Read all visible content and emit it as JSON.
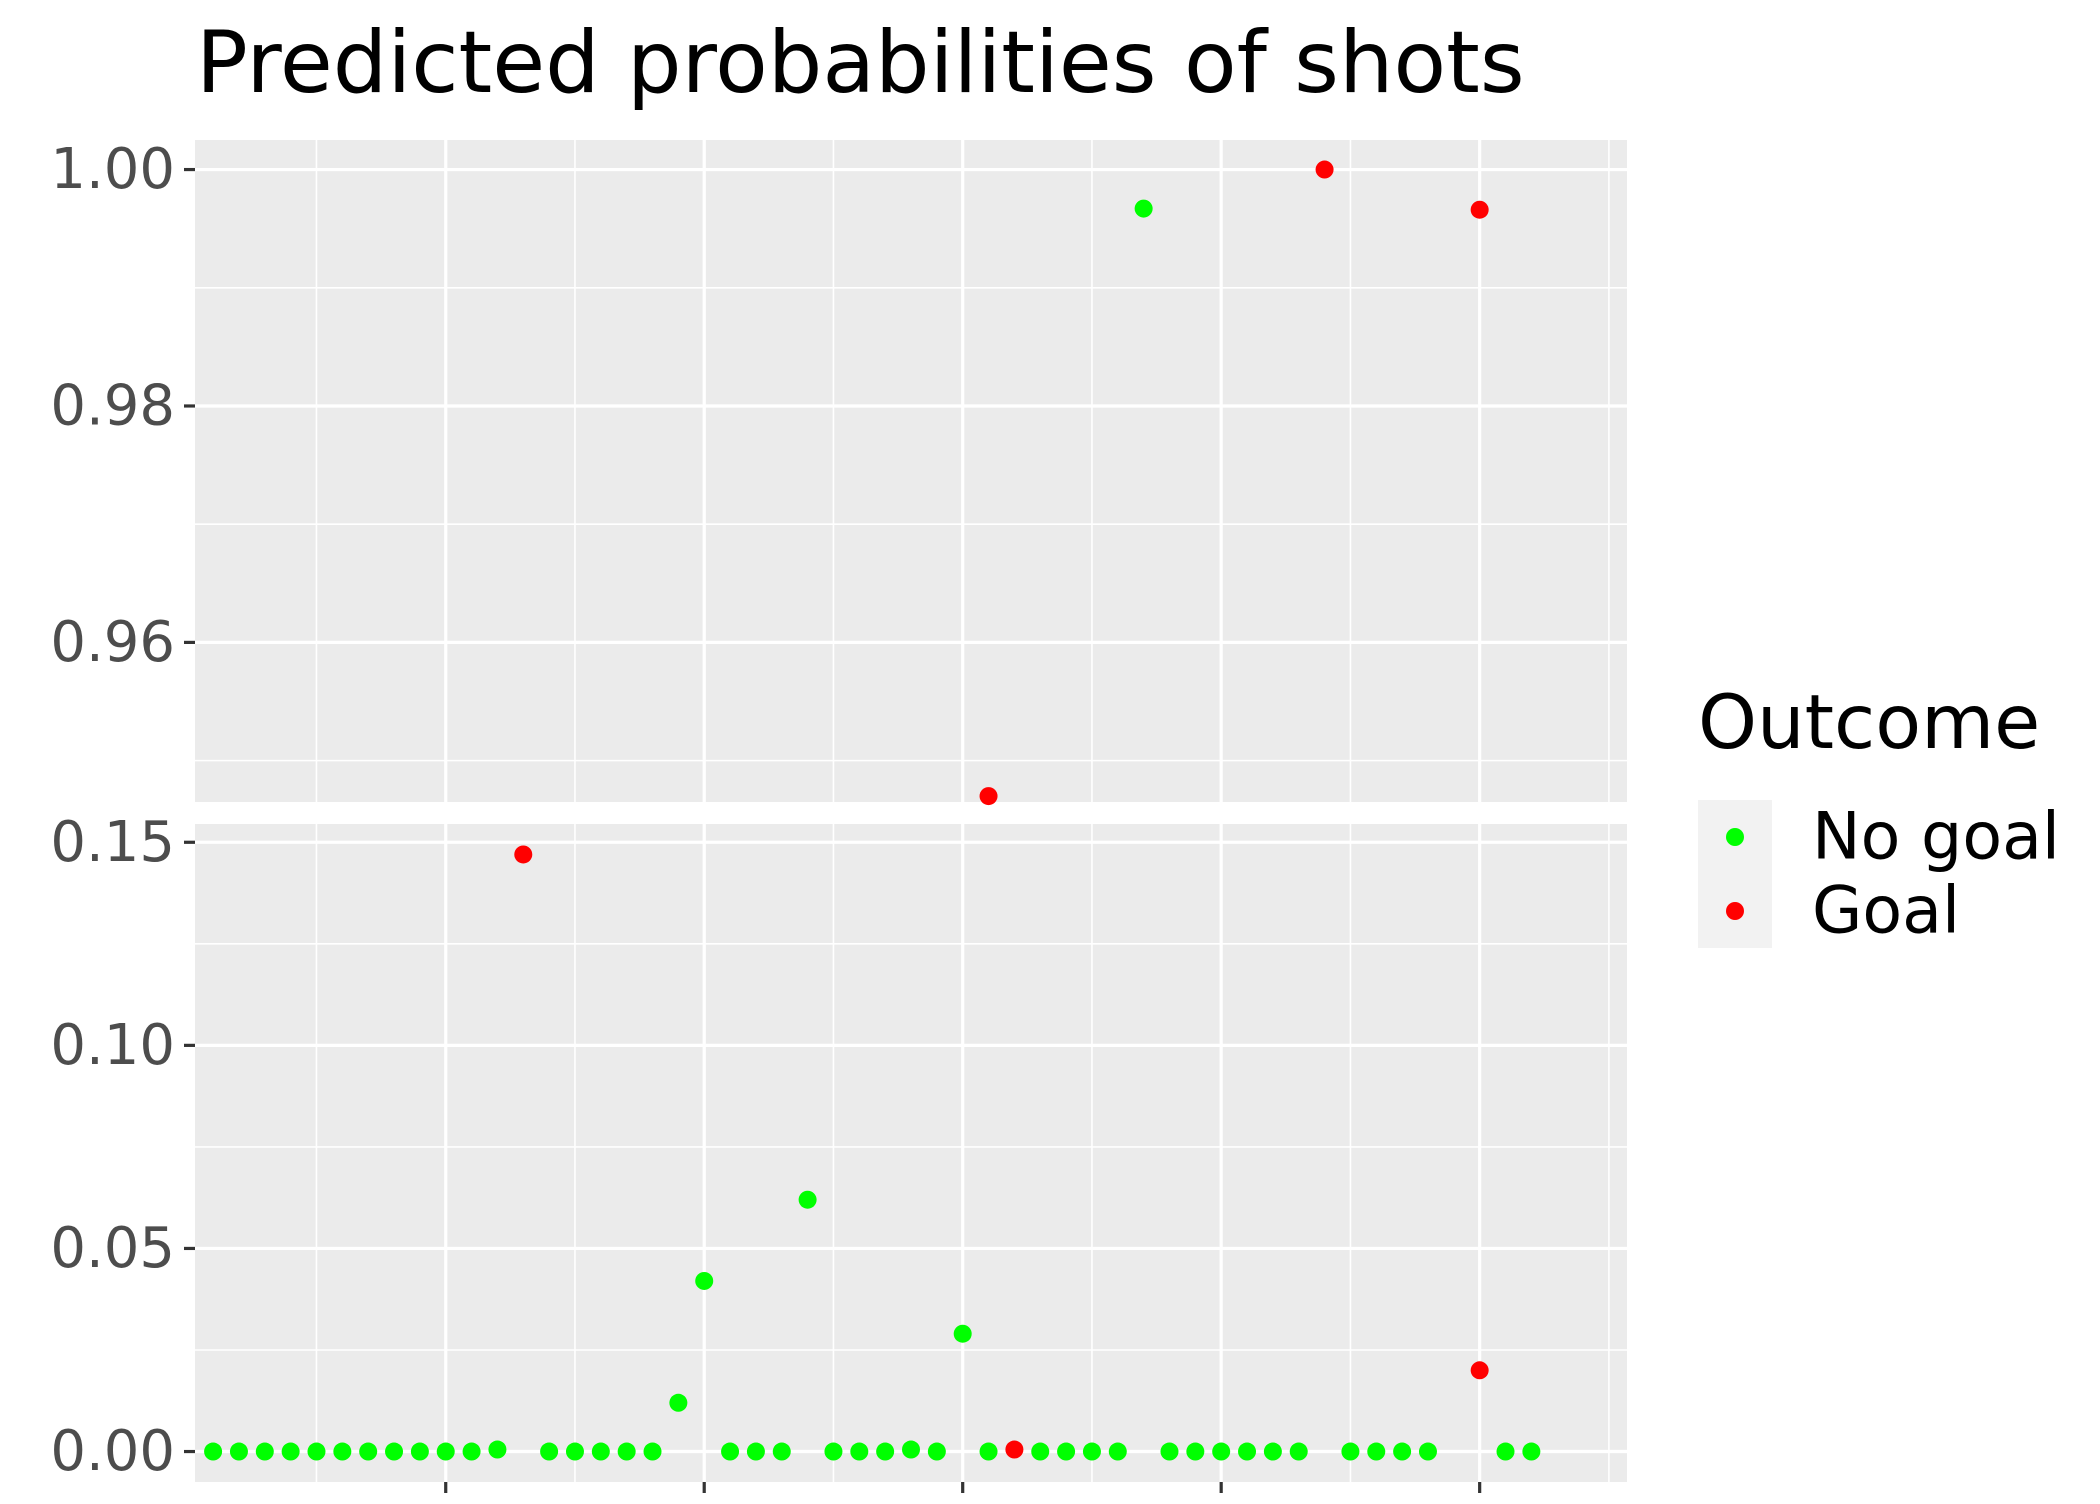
{
  "chart_data": {
    "type": "scatter",
    "title": "Predicted probabilities of shots",
    "xlabel": "",
    "ylabel": "",
    "facets": "two stacked panels with broken y axis",
    "x_axis": {
      "tick_labels_shown": false,
      "xlim": [
        0.3,
        55.7
      ]
    },
    "panels": [
      {
        "name": "upper",
        "ylim": [
          0.9465,
          1.0025
        ],
        "yticks": [
          0.96,
          0.98,
          1.0
        ],
        "ytick_labels": [
          "0.96",
          "0.98",
          "1.00"
        ]
      },
      {
        "name": "lower",
        "ylim": [
          -0.0075,
          0.1545
        ],
        "yticks": [
          0.0,
          0.05,
          0.1,
          0.15
        ],
        "ytick_labels": [
          "0.00",
          "0.05",
          "0.10",
          "0.15"
        ]
      }
    ],
    "grid": true,
    "legend": {
      "title": "Outcome",
      "position": "right",
      "entries": [
        {
          "label": "No goal",
          "color": "#00ff00"
        },
        {
          "label": "Goal",
          "color": "#ff0000"
        }
      ]
    },
    "series": [
      {
        "name": "No goal",
        "color": "#00ff00",
        "points": [
          [
            1,
            0.0
          ],
          [
            2,
            0.0
          ],
          [
            3,
            0.0
          ],
          [
            4,
            0.0
          ],
          [
            5,
            0.0
          ],
          [
            6,
            0.0
          ],
          [
            7,
            0.0
          ],
          [
            8,
            0.0
          ],
          [
            9,
            0.0
          ],
          [
            10,
            0.0
          ],
          [
            11,
            0.0
          ],
          [
            12,
            0.0005
          ],
          [
            14,
            0.0
          ],
          [
            15,
            0.0
          ],
          [
            16,
            0.0
          ],
          [
            17,
            0.0
          ],
          [
            18,
            0.0
          ],
          [
            19,
            0.012
          ],
          [
            20,
            0.042
          ],
          [
            21,
            0.0
          ],
          [
            22,
            0.0
          ],
          [
            23,
            0.0
          ],
          [
            24,
            0.062
          ],
          [
            25,
            0.0
          ],
          [
            26,
            0.0
          ],
          [
            27,
            0.0
          ],
          [
            28,
            0.0005
          ],
          [
            29,
            0.0
          ],
          [
            30,
            0.029
          ],
          [
            31,
            0.0
          ],
          [
            33,
            0.0
          ],
          [
            34,
            0.0
          ],
          [
            35,
            0.0
          ],
          [
            36,
            0.0
          ],
          [
            37,
            0.9967
          ],
          [
            38,
            0.0
          ],
          [
            39,
            0.0
          ],
          [
            40,
            0.0
          ],
          [
            41,
            0.0
          ],
          [
            42,
            0.0
          ],
          [
            43,
            0.0
          ],
          [
            45,
            0.0
          ],
          [
            46,
            0.0
          ],
          [
            47,
            0.0
          ],
          [
            48,
            0.0
          ],
          [
            51,
            0.0
          ],
          [
            52,
            0.0
          ]
        ]
      },
      {
        "name": "Goal",
        "color": "#ff0000",
        "points": [
          [
            13,
            0.147
          ],
          [
            31,
            0.947
          ],
          [
            32,
            0.0005
          ],
          [
            44,
            1.0
          ],
          [
            50,
            0.02
          ],
          [
            50,
            0.9966
          ]
        ]
      }
    ]
  }
}
